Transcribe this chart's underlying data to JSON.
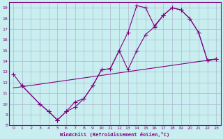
{
  "xlabel": "Windchill (Refroidissement éolien,°C)",
  "bg_color": "#c8eef0",
  "line_color": "#800080",
  "grid_color": "#b0b8d0",
  "xlim": [
    -0.5,
    23.5
  ],
  "ylim": [
    8,
    19.5
  ],
  "xticks": [
    0,
    1,
    2,
    3,
    4,
    5,
    6,
    7,
    8,
    9,
    10,
    11,
    12,
    13,
    14,
    15,
    16,
    17,
    18,
    19,
    20,
    21,
    22,
    23
  ],
  "yticks": [
    8,
    9,
    10,
    11,
    12,
    13,
    14,
    15,
    16,
    17,
    18,
    19
  ],
  "line1_x": [
    0,
    1,
    3,
    4,
    5,
    6,
    7,
    8,
    9,
    10,
    11,
    12,
    13,
    14,
    15,
    16,
    17,
    18,
    19,
    20,
    21,
    22,
    23
  ],
  "line1_y": [
    12.8,
    11.7,
    10.0,
    9.3,
    8.5,
    9.3,
    10.2,
    10.5,
    11.7,
    13.2,
    13.3,
    15.0,
    16.7,
    19.2,
    19.0,
    17.3,
    18.3,
    19.0,
    18.8,
    18.0,
    16.7,
    14.1,
    14.2
  ],
  "line2_x": [
    1,
    3,
    4,
    5,
    6,
    7,
    8,
    9,
    10,
    11,
    12,
    13,
    14,
    15,
    16,
    17,
    18,
    19,
    20,
    21,
    22,
    23
  ],
  "line2_y": [
    11.7,
    10.0,
    9.3,
    8.5,
    9.3,
    9.7,
    10.5,
    11.7,
    13.2,
    13.3,
    15.0,
    13.2,
    15.0,
    16.5,
    17.2,
    18.3,
    19.0,
    18.8,
    18.0,
    16.7,
    14.1,
    14.2
  ],
  "line3_x": [
    0,
    23
  ],
  "line3_y": [
    11.5,
    14.2
  ]
}
